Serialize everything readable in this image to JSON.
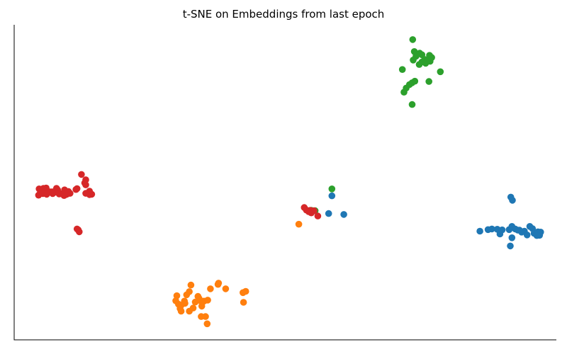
{
  "chart_data": {
    "type": "scatter",
    "title": "t-SNE on Embeddings from last epoch",
    "xlabel": "",
    "ylabel": "",
    "xlim": [
      0,
      100
    ],
    "ylim": [
      0,
      100
    ],
    "axes": {
      "left_spine": true,
      "bottom_spine": true,
      "top_spine": false,
      "right_spine": false,
      "ticks": false,
      "grid": false
    },
    "series": [
      {
        "color": "#1f77b4",
        "points": [
          [
            91.6,
            45.3
          ],
          [
            91.9,
            44.3
          ],
          [
            85.9,
            34.5
          ],
          [
            87.4,
            35.0
          ],
          [
            88.1,
            35.2
          ],
          [
            89.1,
            35.1
          ],
          [
            90.0,
            34.9
          ],
          [
            91.3,
            35.0
          ],
          [
            91.8,
            36.0
          ],
          [
            92.4,
            35.2
          ],
          [
            92.9,
            34.8
          ],
          [
            93.6,
            34.2
          ],
          [
            94.1,
            34.5
          ],
          [
            95.1,
            36.0
          ],
          [
            95.6,
            35.3
          ],
          [
            95.9,
            33.8
          ],
          [
            96.3,
            33.4
          ],
          [
            96.6,
            34.3
          ],
          [
            96.9,
            33.2
          ],
          [
            97.1,
            34.2
          ],
          [
            94.6,
            33.3
          ],
          [
            91.8,
            32.4
          ],
          [
            89.6,
            33.6
          ],
          [
            91.5,
            29.8
          ],
          [
            58.0,
            40.1
          ],
          [
            58.6,
            45.7
          ],
          [
            60.8,
            39.8
          ],
          [
            96.4,
            33.1
          ],
          [
            93.2,
            34.8
          ]
        ]
      },
      {
        "color": "#ff7f0e",
        "points": [
          [
            32.6,
            17.4
          ],
          [
            32.3,
            15.3
          ],
          [
            31.8,
            14.3
          ],
          [
            31.4,
            12.3
          ],
          [
            30.8,
            11.0
          ],
          [
            30.3,
            11.3
          ],
          [
            29.8,
            12.4
          ],
          [
            30.0,
            14.0
          ],
          [
            30.6,
            9.9
          ],
          [
            30.8,
            9.1
          ],
          [
            31.5,
            11.6
          ],
          [
            32.3,
            9.1
          ],
          [
            33.0,
            10.1
          ],
          [
            33.4,
            12.0
          ],
          [
            34.6,
            10.7
          ],
          [
            35.0,
            12.3
          ],
          [
            34.1,
            13.1
          ],
          [
            34.5,
            12.2
          ],
          [
            35.7,
            12.6
          ],
          [
            33.9,
            13.8
          ],
          [
            36.2,
            16.2
          ],
          [
            37.6,
            17.6
          ],
          [
            37.7,
            18.0
          ],
          [
            39.0,
            16.2
          ],
          [
            42.2,
            15.0
          ],
          [
            42.7,
            15.4
          ],
          [
            42.3,
            11.9
          ],
          [
            35.6,
            5.1
          ],
          [
            35.3,
            7.4
          ],
          [
            34.5,
            7.4
          ],
          [
            52.5,
            36.7
          ]
        ]
      },
      {
        "color": "#2ca02c",
        "points": [
          [
            73.5,
            95.3
          ],
          [
            73.8,
            91.5
          ],
          [
            74.1,
            90.0
          ],
          [
            74.8,
            91.0
          ],
          [
            75.2,
            90.5
          ],
          [
            75.7,
            89.0
          ],
          [
            76.6,
            90.3
          ],
          [
            76.9,
            89.7
          ],
          [
            76.1,
            88.6
          ],
          [
            75.2,
            88.2
          ],
          [
            74.7,
            87.4
          ],
          [
            73.6,
            88.8
          ],
          [
            75.9,
            87.8
          ],
          [
            76.7,
            88.4
          ],
          [
            77.0,
            89.6
          ],
          [
            78.6,
            85.1
          ],
          [
            71.6,
            85.8
          ],
          [
            73.9,
            82.1
          ],
          [
            73.4,
            81.6
          ],
          [
            72.9,
            81.0
          ],
          [
            72.3,
            79.9
          ],
          [
            71.9,
            78.6
          ],
          [
            76.5,
            82.0
          ],
          [
            73.4,
            74.7
          ],
          [
            58.6,
            47.9
          ],
          [
            54.8,
            41.1
          ],
          [
            55.5,
            41.0
          ]
        ]
      },
      {
        "color": "#d62728",
        "points": [
          [
            12.4,
            52.5
          ],
          [
            13.2,
            50.8
          ],
          [
            13.2,
            49.2
          ],
          [
            13.0,
            49.8
          ],
          [
            11.4,
            47.7
          ],
          [
            10.3,
            46.5
          ],
          [
            9.7,
            46.2
          ],
          [
            9.2,
            45.8
          ],
          [
            8.5,
            46.4
          ],
          [
            8.0,
            47.6
          ],
          [
            7.8,
            48.1
          ],
          [
            7.4,
            46.8
          ],
          [
            7.0,
            47.0
          ],
          [
            6.6,
            47.0
          ],
          [
            5.9,
            48.2
          ],
          [
            5.4,
            48.1
          ],
          [
            4.6,
            47.9
          ],
          [
            4.8,
            46.5
          ],
          [
            4.5,
            45.9
          ],
          [
            5.3,
            46.4
          ],
          [
            6.0,
            46.2
          ],
          [
            7.1,
            46.4
          ],
          [
            8.3,
            46.3
          ],
          [
            9.3,
            47.6
          ],
          [
            10.0,
            47.1
          ],
          [
            11.6,
            48.0
          ],
          [
            13.9,
            47.2
          ],
          [
            13.2,
            46.5
          ],
          [
            14.3,
            46.2
          ],
          [
            13.9,
            46.1
          ],
          [
            11.6,
            35.2
          ],
          [
            11.8,
            34.9
          ],
          [
            12.0,
            34.3
          ],
          [
            53.5,
            42.0
          ],
          [
            53.9,
            41.2
          ],
          [
            54.6,
            41.1
          ],
          [
            55.3,
            41.0
          ],
          [
            54.8,
            40.3
          ],
          [
            56.0,
            39.3
          ],
          [
            54.3,
            40.7
          ]
        ]
      }
    ]
  }
}
